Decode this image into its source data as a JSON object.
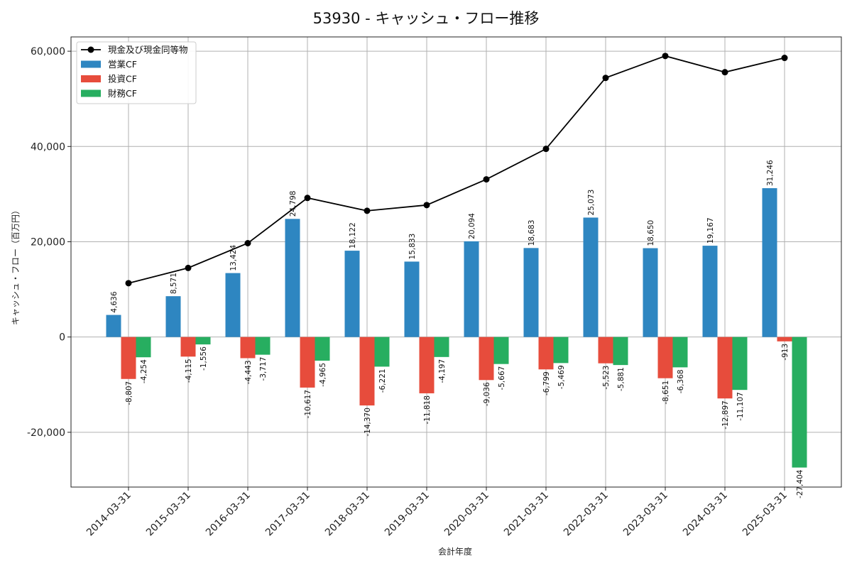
{
  "chart_data": {
    "type": "bar",
    "title": "53930 - キャッシュ・フロー推移",
    "xlabel": "会計年度",
    "ylabel": "キャッシュ・フロー（百万円）",
    "ylim": [
      -31500,
      63000
    ],
    "yticks": [
      -20000,
      0,
      20000,
      40000,
      60000
    ],
    "ytick_labels": [
      "-20,000",
      "0",
      "20,000",
      "40,000",
      "60,000"
    ],
    "grid": true,
    "legend_position": "top-left",
    "categories": [
      "2014-03-31",
      "2015-03-31",
      "2016-03-31",
      "2017-03-31",
      "2018-03-31",
      "2019-03-31",
      "2020-03-31",
      "2021-03-31",
      "2022-03-31",
      "2023-03-31",
      "2024-03-31",
      "2025-03-31"
    ],
    "series": [
      {
        "name": "営業CF",
        "kind": "bar",
        "color": "#2e86c1",
        "values": [
          4636,
          8571,
          13424,
          24798,
          18122,
          15833,
          20094,
          18683,
          25073,
          18650,
          19167,
          31246
        ],
        "labels": [
          "4,636",
          "8,571",
          "13,424",
          "24,798",
          "18,122",
          "15,833",
          "20,094",
          "18,683",
          "25,073",
          "18,650",
          "19,167",
          "31,246"
        ]
      },
      {
        "name": "投資CF",
        "kind": "bar",
        "color": "#e74c3c",
        "values": [
          -8807,
          -4115,
          -4443,
          -10617,
          -14370,
          -11818,
          -9036,
          -6799,
          -5523,
          -8651,
          -12897,
          -913
        ],
        "labels": [
          "-8,807",
          "-4,115",
          "-4,443",
          "-10,617",
          "-14,370",
          "-11,818",
          "-9,036",
          "-6,799",
          "-5,523",
          "-8,651",
          "-12,897",
          "-913"
        ]
      },
      {
        "name": "財務CF",
        "kind": "bar",
        "color": "#27ae60",
        "values": [
          -4254,
          -1556,
          -3717,
          -4965,
          -6221,
          -4197,
          -5667,
          -5469,
          -5881,
          -6368,
          -11107,
          -27404
        ],
        "labels": [
          "-4,254",
          "-1,556",
          "-3,717",
          "-4,965",
          "-6,221",
          "-4,197",
          "-5,667",
          "-5,469",
          "-5,881",
          "-6,368",
          "-11,107",
          "-27,404"
        ]
      },
      {
        "name": "現金及び現金同等物",
        "kind": "line",
        "color": "#000000",
        "values": [
          11300,
          14500,
          19700,
          29200,
          26500,
          27700,
          33100,
          39500,
          54400,
          59000,
          55600,
          58600
        ]
      }
    ]
  }
}
